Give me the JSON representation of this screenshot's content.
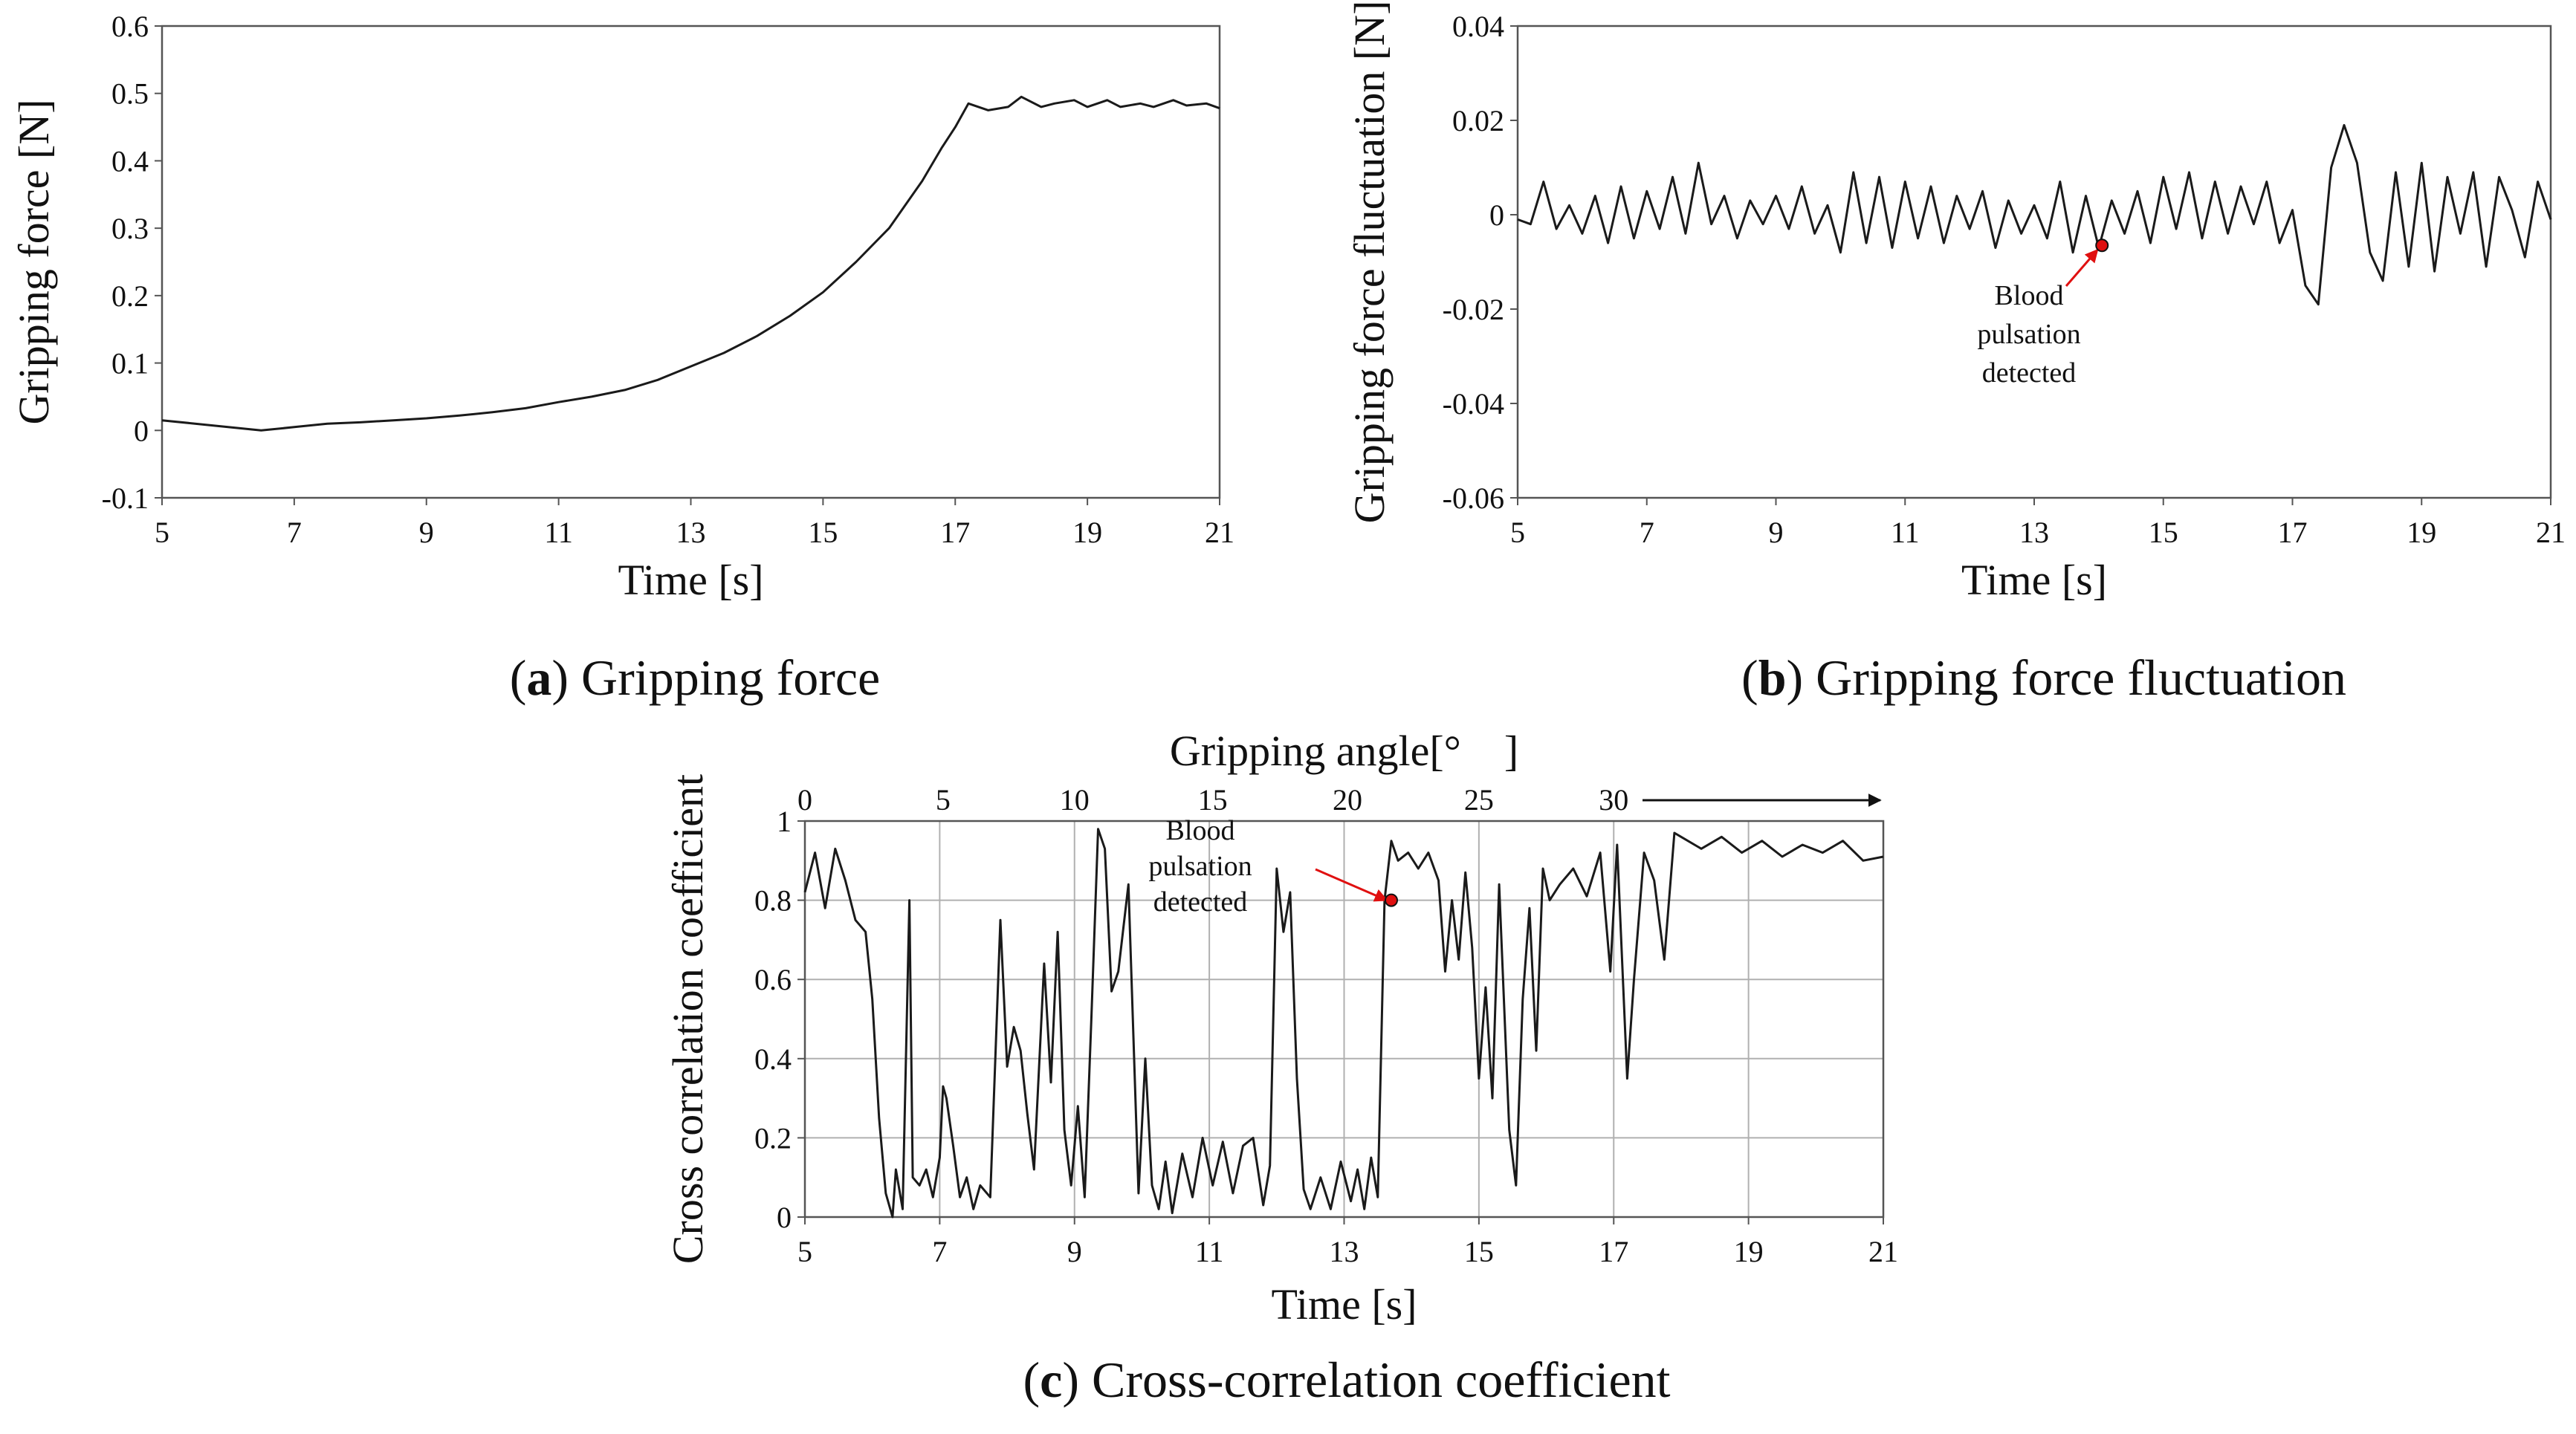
{
  "chart_data": [
    {
      "id": "a",
      "type": "line",
      "caption": {
        "letter": "a",
        "text": " Gripping force"
      },
      "xlabel": "Time [s]",
      "ylabel": "Gripping force [N]",
      "xlim": [
        5,
        21
      ],
      "ylim": [
        -0.1,
        0.6
      ],
      "xticks": [
        5,
        7,
        9,
        11,
        13,
        15,
        17,
        19,
        21
      ],
      "yticks": [
        -0.1,
        0,
        0.1,
        0.2,
        0.3,
        0.4,
        0.5,
        0.6
      ],
      "ytick_labels": [
        "-0.1",
        "0",
        "0.1",
        "0.2",
        "0.3",
        "0.4",
        "0.5",
        "0.6"
      ],
      "grid": false,
      "series": [
        {
          "name": "gripping force",
          "x": [
            5.0,
            5.5,
            6.0,
            6.5,
            7.0,
            7.5,
            8.0,
            8.5,
            9.0,
            9.5,
            10.0,
            10.5,
            11.0,
            11.5,
            12.0,
            12.5,
            13.0,
            13.5,
            14.0,
            14.5,
            15.0,
            15.5,
            16.0,
            16.5,
            16.8,
            17.0,
            17.2,
            17.5,
            17.8,
            18.0,
            18.3,
            18.5,
            18.8,
            19.0,
            19.3,
            19.5,
            19.8,
            20.0,
            20.3,
            20.5,
            20.8,
            21.0
          ],
          "y": [
            0.015,
            0.01,
            0.005,
            0.0,
            0.005,
            0.01,
            0.012,
            0.015,
            0.018,
            0.022,
            0.027,
            0.033,
            0.042,
            0.05,
            0.06,
            0.075,
            0.095,
            0.115,
            0.14,
            0.17,
            0.205,
            0.25,
            0.3,
            0.37,
            0.42,
            0.45,
            0.485,
            0.475,
            0.48,
            0.495,
            0.48,
            0.485,
            0.49,
            0.48,
            0.49,
            0.48,
            0.485,
            0.48,
            0.49,
            0.482,
            0.485,
            0.478
          ]
        }
      ]
    },
    {
      "id": "b",
      "type": "line",
      "caption": {
        "letter": "b",
        "text": " Gripping force fluctuation"
      },
      "xlabel": "Time [s]",
      "ylabel": "Gripping force fluctuation [N]",
      "xlim": [
        5,
        21
      ],
      "ylim": [
        -0.06,
        0.04
      ],
      "xticks": [
        5,
        7,
        9,
        11,
        13,
        15,
        17,
        19,
        21
      ],
      "yticks": [
        -0.06,
        -0.04,
        -0.02,
        0,
        0.02,
        0.04
      ],
      "ytick_labels": [
        "-0.06",
        "-0.04",
        "-0.02",
        "0",
        "0.02",
        "0.04"
      ],
      "grid": false,
      "series": [
        {
          "name": "fluctuation",
          "x": [
            5.0,
            5.2,
            5.4,
            5.6,
            5.8,
            6.0,
            6.2,
            6.4,
            6.6,
            6.8,
            7.0,
            7.2,
            7.4,
            7.6,
            7.8,
            8.0,
            8.2,
            8.4,
            8.6,
            8.8,
            9.0,
            9.2,
            9.4,
            9.6,
            9.8,
            10.0,
            10.2,
            10.4,
            10.6,
            10.8,
            11.0,
            11.2,
            11.4,
            11.6,
            11.8,
            12.0,
            12.2,
            12.4,
            12.6,
            12.8,
            13.0,
            13.2,
            13.4,
            13.6,
            13.8,
            14.0,
            14.2,
            14.4,
            14.6,
            14.8,
            15.0,
            15.2,
            15.4,
            15.6,
            15.8,
            16.0,
            16.2,
            16.4,
            16.6,
            16.8,
            17.0,
            17.2,
            17.4,
            17.6,
            17.8,
            18.0,
            18.2,
            18.4,
            18.6,
            18.8,
            19.0,
            19.2,
            19.4,
            19.6,
            19.8,
            20.0,
            20.2,
            20.4,
            20.6,
            20.8,
            21.0
          ],
          "y": [
            -0.001,
            -0.002,
            0.007,
            -0.003,
            0.002,
            -0.004,
            0.004,
            -0.006,
            0.006,
            -0.005,
            0.005,
            -0.003,
            0.008,
            -0.004,
            0.011,
            -0.002,
            0.004,
            -0.005,
            0.003,
            -0.002,
            0.004,
            -0.003,
            0.006,
            -0.004,
            0.002,
            -0.008,
            0.009,
            -0.006,
            0.008,
            -0.007,
            0.007,
            -0.005,
            0.006,
            -0.006,
            0.004,
            -0.003,
            0.005,
            -0.007,
            0.003,
            -0.004,
            0.002,
            -0.005,
            0.007,
            -0.008,
            0.004,
            -0.007,
            0.003,
            -0.004,
            0.005,
            -0.006,
            0.008,
            -0.003,
            0.009,
            -0.005,
            0.007,
            -0.004,
            0.006,
            -0.002,
            0.007,
            -0.006,
            0.001,
            -0.015,
            -0.019,
            0.01,
            0.019,
            0.011,
            -0.008,
            -0.014,
            0.009,
            -0.011,
            0.011,
            -0.012,
            0.008,
            -0.004,
            0.009,
            -0.011,
            0.008,
            0.001,
            -0.009,
            0.007,
            -0.001
          ]
        }
      ],
      "annotations": [
        {
          "lines": [
            "Blood",
            "pulsation",
            "detected"
          ],
          "x": 14.05,
          "y": -0.0065
        }
      ]
    },
    {
      "id": "c",
      "type": "line",
      "caption": {
        "letter": "c",
        "text": " Cross-correlation coefficient"
      },
      "xlabel": "Time [s]",
      "ylabel": "Cross correlation coefficient",
      "x2label": "Gripping angle[°　]",
      "xlim": [
        5,
        21
      ],
      "ylim": [
        0,
        1
      ],
      "xticks": [
        5,
        7,
        9,
        11,
        13,
        15,
        17,
        19,
        21
      ],
      "yticks": [
        0,
        0.2,
        0.4,
        0.6,
        0.8,
        1
      ],
      "ytick_labels": [
        "0",
        "0.2",
        "0.4",
        "0.6",
        "0.8",
        "1"
      ],
      "x2ticks": [
        {
          "label": "0",
          "x": 5.0
        },
        {
          "label": "5",
          "x": 7.05
        },
        {
          "label": "10",
          "x": 9.0
        },
        {
          "label": "15",
          "x": 11.05
        },
        {
          "label": "20",
          "x": 13.05
        },
        {
          "label": "25",
          "x": 15.0
        },
        {
          "label": "30",
          "x": 17.0
        }
      ],
      "grid": true,
      "series": [
        {
          "name": "cross correlation",
          "x": [
            5.0,
            5.15,
            5.3,
            5.45,
            5.6,
            5.75,
            5.9,
            6.0,
            6.1,
            6.2,
            6.3,
            6.35,
            6.45,
            6.55,
            6.6,
            6.7,
            6.8,
            6.9,
            7.0,
            7.05,
            7.1,
            7.2,
            7.3,
            7.4,
            7.5,
            7.6,
            7.75,
            7.9,
            8.0,
            8.1,
            8.2,
            8.3,
            8.4,
            8.55,
            8.65,
            8.75,
            8.85,
            8.95,
            9.05,
            9.15,
            9.25,
            9.35,
            9.45,
            9.55,
            9.65,
            9.8,
            9.95,
            10.05,
            10.15,
            10.25,
            10.35,
            10.45,
            10.6,
            10.75,
            10.9,
            11.05,
            11.2,
            11.35,
            11.5,
            11.65,
            11.8,
            11.9,
            12.0,
            12.1,
            12.2,
            12.3,
            12.4,
            12.5,
            12.65,
            12.8,
            12.95,
            13.1,
            13.2,
            13.3,
            13.4,
            13.5,
            13.6,
            13.7,
            13.8,
            13.95,
            14.1,
            14.25,
            14.4,
            14.5,
            14.6,
            14.7,
            14.8,
            14.9,
            15.0,
            15.1,
            15.2,
            15.3,
            15.45,
            15.55,
            15.65,
            15.75,
            15.85,
            15.95,
            16.05,
            16.2,
            16.4,
            16.6,
            16.8,
            16.95,
            17.05,
            17.2,
            17.3,
            17.45,
            17.6,
            17.75,
            17.9,
            18.0,
            18.3,
            18.6,
            18.9,
            19.2,
            19.5,
            19.8,
            20.1,
            20.4,
            20.7,
            21.0
          ],
          "y": [
            0.82,
            0.92,
            0.78,
            0.93,
            0.85,
            0.75,
            0.72,
            0.55,
            0.25,
            0.06,
            0.0,
            0.12,
            0.02,
            0.8,
            0.1,
            0.08,
            0.12,
            0.05,
            0.15,
            0.33,
            0.3,
            0.18,
            0.05,
            0.1,
            0.02,
            0.08,
            0.05,
            0.75,
            0.38,
            0.48,
            0.42,
            0.26,
            0.12,
            0.64,
            0.34,
            0.72,
            0.22,
            0.08,
            0.28,
            0.05,
            0.5,
            0.98,
            0.93,
            0.57,
            0.62,
            0.84,
            0.06,
            0.4,
            0.08,
            0.02,
            0.14,
            0.01,
            0.16,
            0.05,
            0.2,
            0.08,
            0.19,
            0.06,
            0.18,
            0.2,
            0.03,
            0.13,
            0.88,
            0.72,
            0.82,
            0.35,
            0.07,
            0.02,
            0.1,
            0.02,
            0.14,
            0.04,
            0.12,
            0.02,
            0.15,
            0.05,
            0.8,
            0.95,
            0.9,
            0.92,
            0.88,
            0.92,
            0.85,
            0.62,
            0.8,
            0.65,
            0.87,
            0.68,
            0.35,
            0.58,
            0.3,
            0.84,
            0.22,
            0.08,
            0.55,
            0.78,
            0.42,
            0.88,
            0.8,
            0.84,
            0.88,
            0.81,
            0.92,
            0.62,
            0.94,
            0.35,
            0.6,
            0.92,
            0.85,
            0.65,
            0.97,
            0.96,
            0.93,
            0.96,
            0.92,
            0.95,
            0.91,
            0.94,
            0.92,
            0.95,
            0.9,
            0.91
          ]
        }
      ],
      "annotations": [
        {
          "lines": [
            "Blood",
            "pulsation",
            "detected"
          ],
          "x": 13.7,
          "y": 0.8
        }
      ]
    }
  ],
  "colors": {
    "line": "#1a1a1a",
    "frame": "#555555",
    "grid": "#b0b0b0",
    "marker": "#e01010",
    "arrow": "#e01010"
  }
}
